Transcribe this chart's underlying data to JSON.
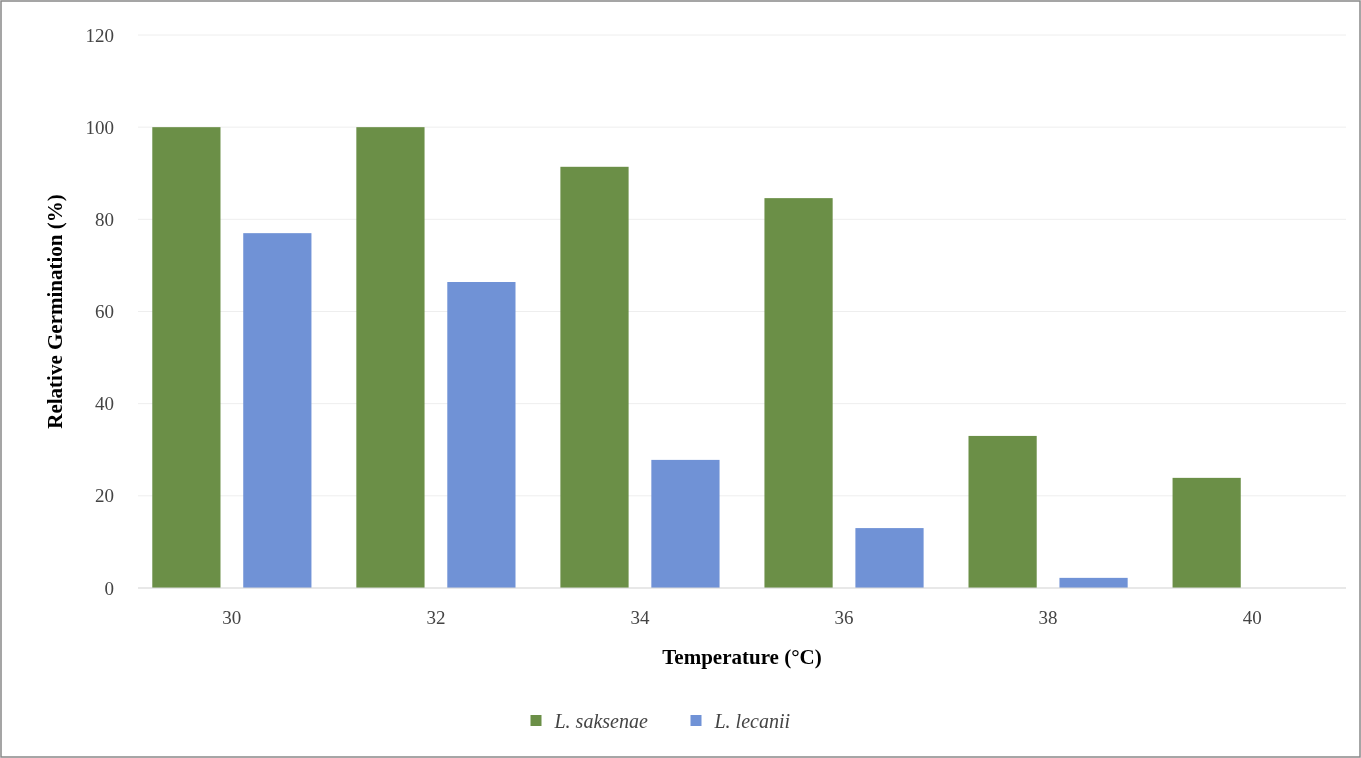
{
  "chart_data": {
    "type": "bar",
    "xlabel": "Temperature (°C)",
    "ylabel": "Relative Germination (%)",
    "categories": [
      "30",
      "32",
      "34",
      "36",
      "38",
      "40"
    ],
    "series": [
      {
        "name": "L. saksenae",
        "color": "#6b8f47",
        "values": [
          100,
          100,
          91.4,
          84.6,
          33,
          23.9
        ]
      },
      {
        "name": "L. lecanii",
        "color": "#7092d6",
        "values": [
          77,
          66.4,
          27.8,
          13,
          2.2,
          0
        ]
      }
    ],
    "ylim": [
      0,
      120
    ],
    "yticks": [
      0,
      20,
      40,
      60,
      80,
      100,
      120
    ],
    "grid": "y",
    "legend": "bottom"
  }
}
